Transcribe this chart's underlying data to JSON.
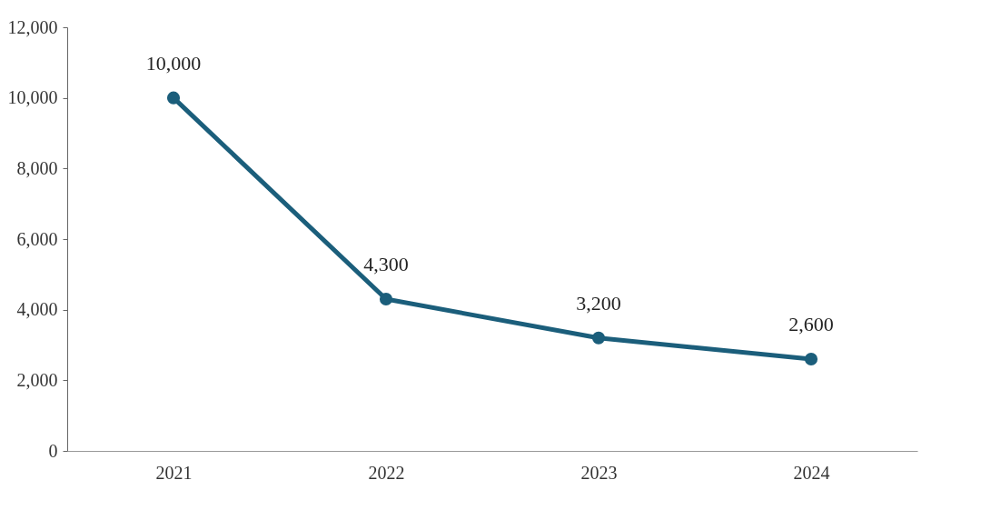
{
  "chart_data": {
    "type": "line",
    "categories": [
      "2021",
      "2022",
      "2023",
      "2024"
    ],
    "series": [
      {
        "color": "#1b5e7b",
        "values": [
          10000,
          4300,
          3200,
          2600
        ],
        "value_labels": [
          "10,000",
          "4,300",
          "3,200",
          "2,600"
        ]
      }
    ],
    "ylim": [
      0,
      12000
    ],
    "yticks": [
      0,
      {
        "value": 2000,
        "label": "2,000"
      },
      {
        "value": 4000,
        "label": "4,000"
      },
      {
        "value": 6000,
        "label": "6,000"
      },
      {
        "value": 8000,
        "label": "8,000"
      },
      {
        "value": 10000,
        "label": "10,000"
      },
      {
        "value": 12000,
        "label": "12,000"
      }
    ],
    "marker": "circle",
    "line_style": "solid"
  }
}
